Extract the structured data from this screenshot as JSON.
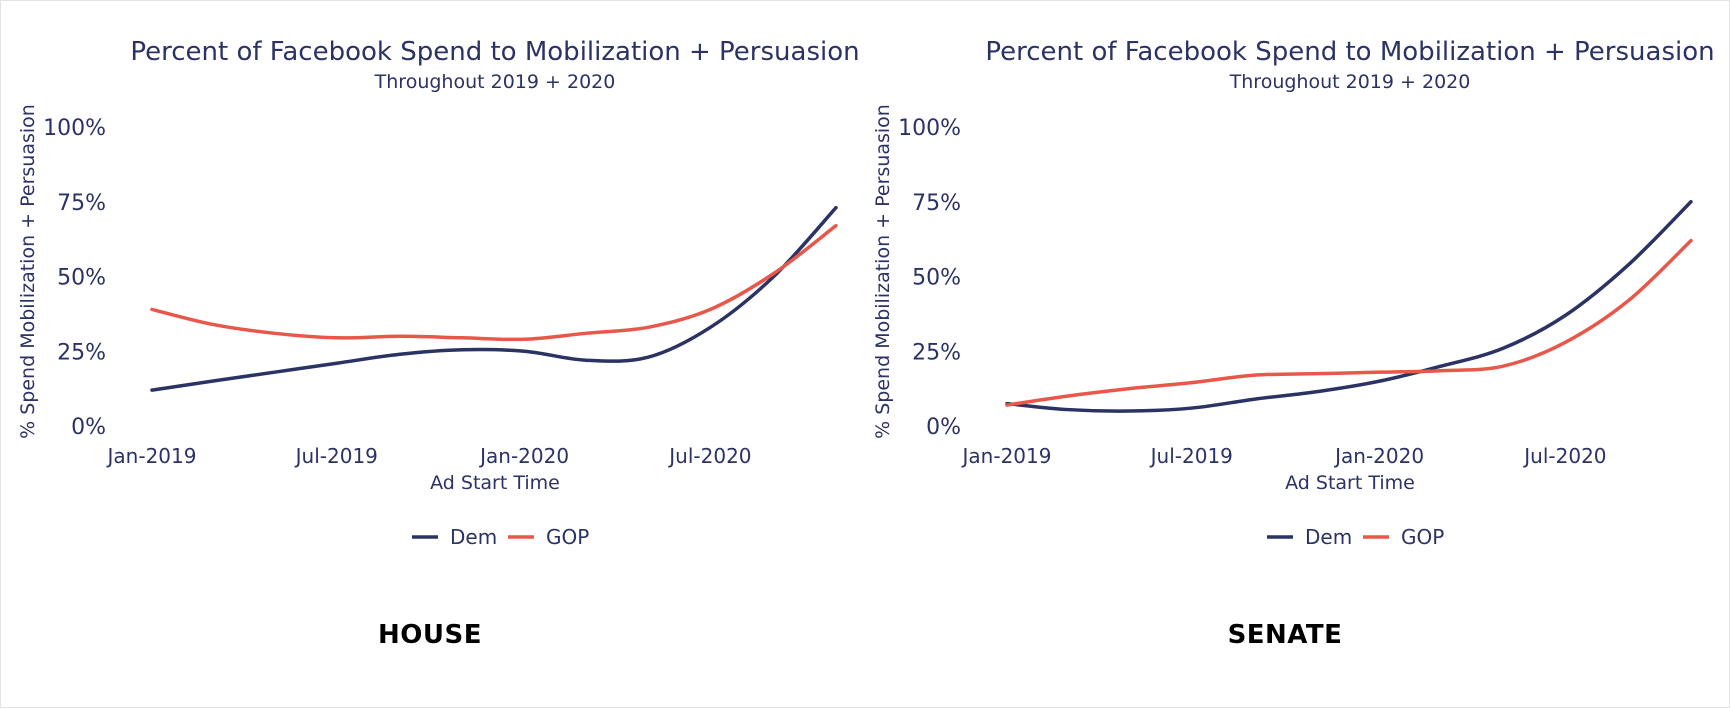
{
  "colors": {
    "dem": "#2b3264",
    "gop": "#e8584a",
    "text": "#2b3264"
  },
  "chart_data": [
    {
      "type": "line",
      "panel_label": "HOUSE",
      "title": "Percent of Facebook Spend to Mobilization + Persuasion",
      "subtitle": "Throughout 2019 + 2020",
      "xlabel": "Ad Start Time",
      "ylabel": "% Spend Mobilization + Persuasion",
      "x_ticks": [
        "2019-01-01",
        "2019-07-01",
        "2020-01-01",
        "2020-07-01"
      ],
      "x_tick_labels": [
        "Jan-2019",
        "Jul-2019",
        "Jan-2020",
        "Jul-2020"
      ],
      "xlim": [
        "2019-01-01",
        "2020-11-03"
      ],
      "y_ticks": [
        0,
        25,
        50,
        75,
        100
      ],
      "y_tick_labels": [
        "0%",
        "25%",
        "50%",
        "75%",
        "100%"
      ],
      "ylim": [
        0,
        100
      ],
      "grid": false,
      "legend_position": "bottom",
      "series": [
        {
          "name": "Dem",
          "color_key": "dem",
          "x": [
            "2019-01-01",
            "2019-03-01",
            "2019-05-01",
            "2019-07-01",
            "2019-09-01",
            "2019-11-01",
            "2020-01-01",
            "2020-03-01",
            "2020-05-01",
            "2020-07-01",
            "2020-09-01",
            "2020-11-01"
          ],
          "y": [
            12,
            15,
            18,
            21,
            24,
            25.5,
            25,
            22,
            23,
            33,
            50,
            73
          ]
        },
        {
          "name": "GOP",
          "color_key": "gop",
          "x": [
            "2019-01-01",
            "2019-03-01",
            "2019-05-01",
            "2019-07-01",
            "2019-09-01",
            "2019-11-01",
            "2020-01-01",
            "2020-03-01",
            "2020-05-01",
            "2020-07-01",
            "2020-09-01",
            "2020-11-01"
          ],
          "y": [
            39,
            34,
            31,
            29.5,
            30,
            29.5,
            29,
            31,
            33,
            39,
            51,
            67
          ]
        }
      ]
    },
    {
      "type": "line",
      "panel_label": "SENATE",
      "title": "Percent of Facebook Spend to Mobilization + Persuasion",
      "subtitle": "Throughout 2019 + 2020",
      "xlabel": "Ad Start Time",
      "ylabel": "% Spend Mobilization + Persuasion",
      "x_ticks": [
        "2019-01-01",
        "2019-07-01",
        "2020-01-01",
        "2020-07-01"
      ],
      "x_tick_labels": [
        "Jan-2019",
        "Jul-2019",
        "Jan-2020",
        "Jul-2020"
      ],
      "xlim": [
        "2019-01-01",
        "2020-11-03"
      ],
      "y_ticks": [
        0,
        25,
        50,
        75,
        100
      ],
      "y_tick_labels": [
        "0%",
        "25%",
        "50%",
        "75%",
        "100%"
      ],
      "ylim": [
        0,
        100
      ],
      "grid": false,
      "legend_position": "bottom",
      "series": [
        {
          "name": "Dem",
          "color_key": "dem",
          "x": [
            "2019-01-01",
            "2019-03-01",
            "2019-05-01",
            "2019-07-01",
            "2019-09-01",
            "2019-11-01",
            "2020-01-01",
            "2020-03-01",
            "2020-05-01",
            "2020-07-01",
            "2020-09-01",
            "2020-11-01"
          ],
          "y": [
            7.5,
            5.5,
            5,
            6,
            9,
            11.5,
            15,
            20,
            26,
            37,
            54,
            75
          ]
        },
        {
          "name": "GOP",
          "color_key": "gop",
          "x": [
            "2019-01-01",
            "2019-03-01",
            "2019-05-01",
            "2019-07-01",
            "2019-09-01",
            "2019-11-01",
            "2020-01-01",
            "2020-03-01",
            "2020-05-01",
            "2020-07-01",
            "2020-09-01",
            "2020-11-01"
          ],
          "y": [
            7,
            10,
            12.5,
            14.5,
            17,
            17.5,
            18,
            18.5,
            20,
            28,
            42,
            62
          ]
        }
      ]
    }
  ]
}
